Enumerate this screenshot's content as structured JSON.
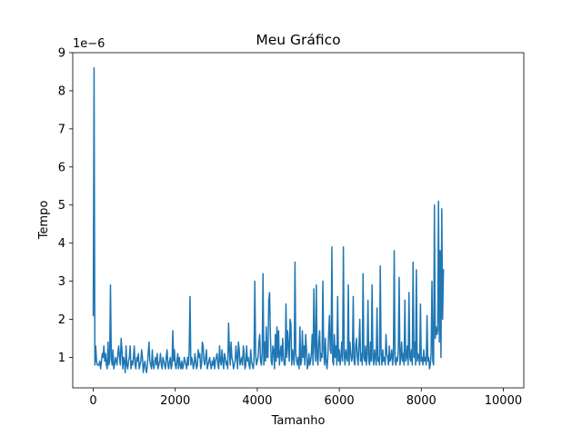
{
  "chart_data": {
    "type": "line",
    "title": "Meu Gráfico",
    "xlabel": "Tamanho",
    "ylabel": "Tempo",
    "y_scale_label": "1e−6",
    "xlim": [
      -500,
      10500
    ],
    "ylim": [
      0.2,
      9.0
    ],
    "x_ticks": [
      0,
      2000,
      4000,
      6000,
      8000,
      10000
    ],
    "x_tick_labels": [
      "0",
      "2000",
      "4000",
      "6000",
      "8000",
      "10000"
    ],
    "y_ticks": [
      1,
      2,
      3,
      4,
      5,
      6,
      7,
      8,
      9
    ],
    "y_tick_labels": [
      "1",
      "2",
      "3",
      "4",
      "5",
      "6",
      "7",
      "8",
      "9"
    ],
    "grid": false,
    "line_color": "#1f77b4",
    "series": [
      {
        "x_step": 20,
        "values": [
          2.1,
          8.6,
          0.8,
          1.3,
          0.9,
          0.8,
          0.8,
          0.8,
          0.9,
          0.7,
          0.9,
          1.1,
          1.0,
          1.3,
          0.9,
          1.1,
          0.8,
          0.7,
          1.4,
          0.8,
          0.9,
          2.9,
          1.0,
          0.8,
          1.2,
          0.7,
          0.8,
          1.0,
          0.9,
          0.8,
          1.1,
          1.3,
          1.0,
          0.8,
          1.5,
          1.2,
          0.7,
          1.0,
          0.9,
          0.6,
          1.3,
          0.8,
          0.7,
          0.9,
          1.0,
          1.3,
          0.7,
          0.9,
          0.8,
          1.0,
          1.3,
          0.8,
          0.7,
          1.0,
          0.9,
          1.1,
          0.7,
          0.8,
          0.9,
          1.2,
          1.0,
          0.6,
          0.8,
          0.9,
          0.7,
          0.6,
          0.8,
          1.1,
          1.4,
          0.9,
          0.8,
          0.7,
          1.2,
          0.8,
          0.7,
          0.9,
          1.0,
          0.8,
          1.1,
          0.7,
          0.8,
          0.9,
          1.1,
          0.8,
          0.7,
          1.0,
          0.9,
          0.8,
          0.7,
          1.0,
          1.2,
          0.8,
          0.7,
          0.9,
          1.0,
          0.7,
          0.8,
          1.7,
          0.9,
          1.2,
          0.8,
          0.7,
          0.9,
          1.1,
          0.7,
          1.0,
          0.8,
          0.7,
          0.9,
          0.7,
          0.8,
          1.0,
          0.9,
          0.8,
          0.7,
          1.0,
          0.8,
          1.2,
          2.6,
          0.8,
          1.0,
          0.9,
          0.7,
          0.8,
          1.1,
          0.9,
          0.7,
          0.8,
          1.2,
          1.0,
          1.1,
          0.7,
          0.8,
          1.4,
          1.3,
          0.9,
          0.8,
          1.0,
          1.2,
          0.7,
          0.8,
          0.9,
          1.0,
          0.8,
          0.7,
          0.9,
          0.8,
          1.0,
          0.7,
          0.9,
          1.0,
          1.1,
          0.8,
          0.7,
          1.3,
          0.9,
          0.8,
          1.2,
          0.9,
          0.7,
          1.1,
          1.0,
          0.8,
          0.9,
          0.7,
          1.9,
          1.2,
          0.8,
          1.4,
          1.0,
          0.9,
          0.7,
          0.8,
          0.9,
          1.3,
          1.0,
          0.7,
          1.4,
          1.2,
          0.8,
          0.9,
          1.0,
          0.8,
          1.3,
          1.1,
          0.7,
          0.8,
          1.3,
          0.9,
          1.0,
          0.8,
          0.7,
          1.2,
          0.9,
          0.8,
          0.7,
          0.9,
          3.0,
          1.1,
          0.8,
          0.9,
          1.0,
          1.4,
          1.6,
          0.9,
          0.8,
          1.1,
          3.2,
          0.8,
          1.4,
          0.9,
          1.8,
          1.0,
          1.0,
          2.5,
          2.7,
          1.6,
          0.9,
          0.8,
          1.3,
          1.2,
          0.7,
          1.6,
          0.9,
          1.8,
          1.0,
          1.7,
          0.8,
          1.1,
          1.3,
          0.9,
          1.5,
          1.0,
          0.8,
          0.8,
          2.4,
          1.0,
          1.7,
          1.3,
          0.9,
          2.0,
          1.9,
          0.8,
          1.2,
          1.0,
          0.8,
          3.5,
          1.1,
          0.9,
          0.8,
          1.0,
          0.7,
          1.8,
          0.8,
          0.9,
          1.7,
          1.0,
          1.3,
          0.8,
          1.6,
          1.2,
          0.7,
          0.8,
          1.1,
          0.8,
          0.9,
          1.1,
          1.6,
          0.8,
          2.8,
          1.3,
          0.9,
          2.9,
          1.0,
          0.8,
          1.4,
          1.7,
          0.9,
          1.1,
          1.0,
          3.0,
          1.2,
          0.8,
          1.5,
          0.9,
          0.7,
          1.0,
          1.6,
          2.1,
          1.2,
          1.1,
          3.9,
          0.9,
          0.8,
          1.6,
          1.0,
          1.3,
          0.8,
          2.6,
          0.9,
          1.2,
          0.8,
          1.0,
          1.4,
          0.9,
          3.9,
          1.1,
          0.8,
          1.2,
          1.0,
          0.9,
          2.9,
          0.8,
          1.4,
          1.1,
          0.9,
          1.0,
          2.6,
          0.9,
          0.8,
          1.3,
          1.5,
          1.0,
          0.8,
          1.3,
          2.0,
          0.9,
          1.1,
          0.8,
          3.2,
          1.0,
          0.9,
          1.3,
          0.8,
          1.1,
          2.5,
          0.9,
          0.8,
          1.4,
          0.9,
          2.9,
          1.0,
          0.8,
          1.2,
          1.0,
          0.8,
          2.3,
          0.9,
          1.0,
          0.8,
          3.4,
          1.1,
          0.8,
          1.2,
          0.9,
          1.0,
          0.8,
          1.6,
          1.1,
          1.0,
          0.8,
          1.3,
          0.9,
          1.0,
          1.2,
          0.8,
          1.1,
          3.8,
          0.9,
          0.8,
          1.0,
          0.9,
          1.2,
          3.1,
          0.8,
          1.0,
          1.4,
          0.9,
          1.1,
          0.8,
          2.5,
          0.9,
          1.0,
          1.3,
          0.8,
          2.7,
          1.0,
          0.9,
          1.2,
          0.8,
          3.5,
          1.0,
          1.4,
          0.8,
          3.3,
          0.9,
          1.1,
          1.0,
          0.8,
          2.4,
          0.9,
          1.0,
          0.8,
          1.2,
          0.9,
          1.0,
          0.8,
          2.1,
          0.9,
          1.0,
          0.7,
          0.8,
          1.1,
          3.0,
          0.9,
          0.8,
          5.0,
          1.5,
          1.8,
          1.6,
          1.7,
          5.1,
          1.4,
          3.8,
          1.0,
          4.9,
          2.0,
          3.3
        ]
      }
    ]
  }
}
